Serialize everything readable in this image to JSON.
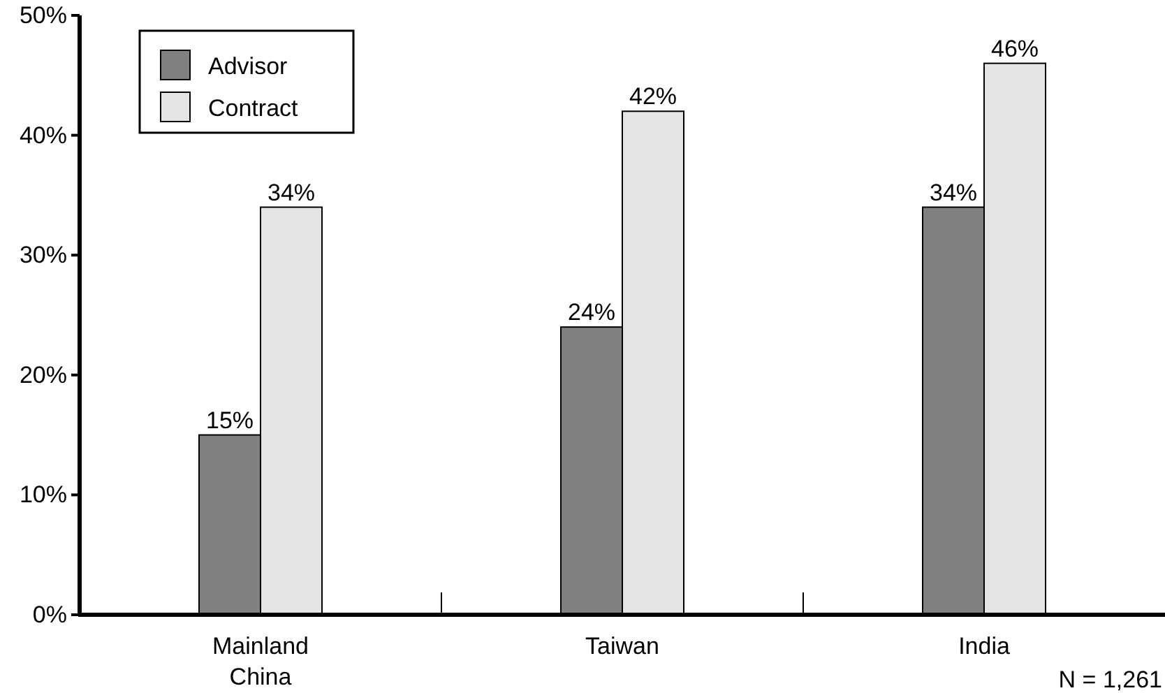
{
  "chart_data": {
    "type": "bar",
    "categories": [
      "Mainland China",
      "Taiwan",
      "India"
    ],
    "series": [
      {
        "name": "Advisor",
        "color": "#808080",
        "values": [
          15,
          24,
          34
        ],
        "value_labels": [
          "15%",
          "24%",
          "34%"
        ]
      },
      {
        "name": "Contract",
        "color": "#e4e4e4",
        "values": [
          34,
          42,
          46
        ],
        "value_labels": [
          "34%",
          "42%",
          "46%"
        ]
      }
    ],
    "ylim": [
      0,
      50
    ],
    "yticks": [
      {
        "value": 0,
        "label": "0%"
      },
      {
        "value": 10,
        "label": "10%"
      },
      {
        "value": 20,
        "label": "20%"
      },
      {
        "value": 30,
        "label": "30%"
      },
      {
        "value": 40,
        "label": "40%"
      },
      {
        "value": 50,
        "label": "50%"
      }
    ],
    "legend": "top left",
    "grid": false,
    "annotations": [
      "N = 1,261"
    ]
  }
}
